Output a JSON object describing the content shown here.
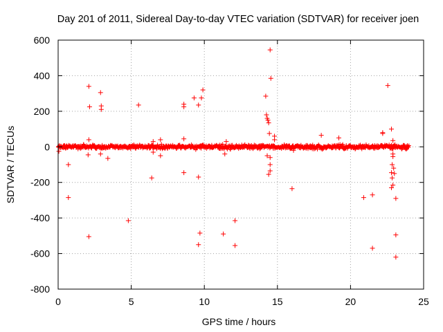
{
  "chart_data": {
    "type": "scatter",
    "title": "Day 201 of 2011, Sidereal Day-to-day VTEC variation (SDTVAR) for receiver joen",
    "xlabel": "GPS time / hours",
    "ylabel": "SDTVAR / TECUs",
    "xlim": [
      0,
      25
    ],
    "ylim": [
      -800,
      600
    ],
    "xticks": [
      0,
      5,
      10,
      15,
      20,
      25
    ],
    "yticks": [
      -800,
      -600,
      -400,
      -200,
      0,
      200,
      400,
      600
    ],
    "grid": true,
    "marker": "+",
    "color": "#ff0000",
    "dense_band": {
      "description": "near-continuous samples clustered around zero across the day",
      "x_range": [
        0,
        24
      ],
      "y_spread": 18
    },
    "series": [
      {
        "name": "SDTVAR",
        "points": [
          [
            0.05,
            -25
          ],
          [
            0.7,
            -100
          ],
          [
            0.7,
            -285
          ],
          [
            2.1,
            340
          ],
          [
            2.15,
            225
          ],
          [
            2.1,
            40
          ],
          [
            2.05,
            -45
          ],
          [
            2.1,
            -505
          ],
          [
            2.9,
            305
          ],
          [
            2.95,
            230
          ],
          [
            2.95,
            210
          ],
          [
            2.9,
            -40
          ],
          [
            3.4,
            -65
          ],
          [
            4.8,
            -415
          ],
          [
            5.5,
            235
          ],
          [
            6.4,
            -175
          ],
          [
            6.5,
            30
          ],
          [
            6.5,
            -30
          ],
          [
            7.0,
            40
          ],
          [
            7.0,
            -50
          ],
          [
            8.6,
            240
          ],
          [
            8.6,
            225
          ],
          [
            8.6,
            45
          ],
          [
            8.6,
            -145
          ],
          [
            9.3,
            275
          ],
          [
            9.6,
            235
          ],
          [
            9.6,
            -170
          ],
          [
            9.7,
            -485
          ],
          [
            9.6,
            -550
          ],
          [
            9.8,
            275
          ],
          [
            9.9,
            320
          ],
          [
            11.3,
            -490
          ],
          [
            11.5,
            30
          ],
          [
            11.4,
            -40
          ],
          [
            12.1,
            -415
          ],
          [
            12.1,
            -555
          ],
          [
            14.2,
            285
          ],
          [
            14.25,
            180
          ],
          [
            14.3,
            160
          ],
          [
            14.35,
            150
          ],
          [
            14.4,
            135
          ],
          [
            14.45,
            75
          ],
          [
            14.5,
            545
          ],
          [
            14.55,
            385
          ],
          [
            14.3,
            -50
          ],
          [
            14.5,
            -60
          ],
          [
            14.5,
            -100
          ],
          [
            14.5,
            -135
          ],
          [
            14.4,
            -155
          ],
          [
            14.8,
            60
          ],
          [
            14.8,
            40
          ],
          [
            16.0,
            -235
          ],
          [
            16.1,
            -20
          ],
          [
            18.0,
            65
          ],
          [
            19.2,
            50
          ],
          [
            20.9,
            -285
          ],
          [
            21.5,
            -270
          ],
          [
            21.5,
            -570
          ],
          [
            22.2,
            80
          ],
          [
            22.2,
            75
          ],
          [
            22.55,
            345
          ],
          [
            22.8,
            100
          ],
          [
            22.9,
            35
          ],
          [
            22.9,
            -40
          ],
          [
            22.9,
            -55
          ],
          [
            22.85,
            -100
          ],
          [
            22.8,
            -145
          ],
          [
            22.85,
            -175
          ],
          [
            22.9,
            -215
          ],
          [
            22.8,
            -230
          ],
          [
            23.0,
            -150
          ],
          [
            22.95,
            -120
          ],
          [
            23.1,
            -290
          ],
          [
            23.1,
            -495
          ],
          [
            23.1,
            -620
          ]
        ]
      }
    ]
  }
}
